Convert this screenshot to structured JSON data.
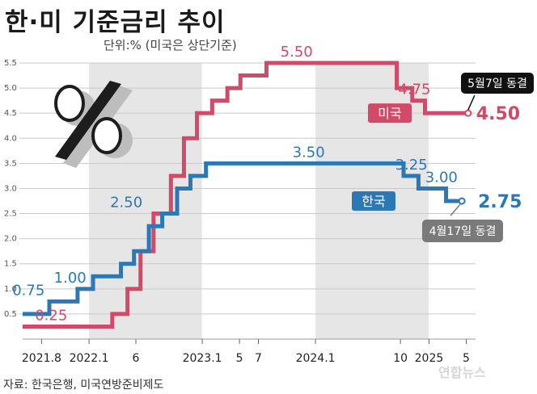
{
  "title": "한·미 기준금리 추이",
  "unit_note": "단위:% (미국은 상단기준)",
  "source": "자료: 한국은행, 미국연방준비제도",
  "watermark": "연합뉴스",
  "colors": {
    "us": "#d14a67",
    "korea": "#2b78b5",
    "grid": "#c9c9c9",
    "shade": "#e6e6e6",
    "callout": "#111111",
    "callout_gray": "#7a7a7a"
  },
  "icon": "percent-symbol-icon",
  "chart_data": {
    "type": "line",
    "step": true,
    "ylim": [
      0,
      5.5
    ],
    "yticks": [
      "0.5",
      "1.0",
      "1.5",
      "2.0",
      "2.5",
      "3.0",
      "3.5",
      "4.0",
      "4.5",
      "5.0",
      "5.5"
    ],
    "xlim": [
      "2021-06-01",
      "2025-05-31"
    ],
    "xticks": [
      {
        "label": "2021.8",
        "date": "2021-08-01"
      },
      {
        "label": "2022.1",
        "date": "2022-01-01"
      },
      {
        "label": "6",
        "date": "2022-06-01"
      },
      {
        "label": "2023.1",
        "date": "2023-01-01"
      },
      {
        "label": "5",
        "date": "2023-05-01"
      },
      {
        "label": "7",
        "date": "2023-07-01"
      },
      {
        "label": "2024.1",
        "date": "2024-01-01"
      },
      {
        "label": "10",
        "date": "2024-10-01"
      },
      {
        "label": "2025",
        "date": "2025-01-01"
      },
      {
        "label": "5",
        "date": "2025-05-01"
      }
    ],
    "shaded_years": [
      {
        "from": "2022-01-01",
        "to": "2022-12-31"
      },
      {
        "from": "2024-01-01",
        "to": "2024-12-31"
      }
    ],
    "grid": true,
    "series": [
      {
        "name": "미국",
        "color": "#d14a67",
        "steps": [
          {
            "date": "2021-06-01",
            "value": 0.25
          },
          {
            "date": "2022-03-17",
            "value": 0.5
          },
          {
            "date": "2022-05-05",
            "value": 1.0
          },
          {
            "date": "2022-06-16",
            "value": 1.75
          },
          {
            "date": "2022-07-28",
            "value": 2.5
          },
          {
            "date": "2022-09-22",
            "value": 3.25
          },
          {
            "date": "2022-11-03",
            "value": 4.0
          },
          {
            "date": "2022-12-15",
            "value": 4.5
          },
          {
            "date": "2023-02-02",
            "value": 4.75
          },
          {
            "date": "2023-03-23",
            "value": 5.0
          },
          {
            "date": "2023-05-04",
            "value": 5.25
          },
          {
            "date": "2023-07-27",
            "value": 5.5
          },
          {
            "date": "2024-09-19",
            "value": 5.0
          },
          {
            "date": "2024-11-08",
            "value": 4.75
          },
          {
            "date": "2024-12-19",
            "value": 4.5
          },
          {
            "date": "2025-05-07",
            "value": 4.5
          }
        ]
      },
      {
        "name": "한국",
        "color": "#2b78b5",
        "steps": [
          {
            "date": "2021-06-01",
            "value": 0.5
          },
          {
            "date": "2021-08-26",
            "value": 0.75
          },
          {
            "date": "2021-11-25",
            "value": 1.0
          },
          {
            "date": "2022-01-14",
            "value": 1.25
          },
          {
            "date": "2022-04-14",
            "value": 1.5
          },
          {
            "date": "2022-05-26",
            "value": 1.75
          },
          {
            "date": "2022-07-13",
            "value": 2.25
          },
          {
            "date": "2022-08-25",
            "value": 2.5
          },
          {
            "date": "2022-10-12",
            "value": 3.0
          },
          {
            "date": "2022-11-24",
            "value": 3.25
          },
          {
            "date": "2023-01-13",
            "value": 3.5
          },
          {
            "date": "2024-10-11",
            "value": 3.25
          },
          {
            "date": "2024-11-28",
            "value": 3.0
          },
          {
            "date": "2025-02-25",
            "value": 2.75
          },
          {
            "date": "2025-04-17",
            "value": 2.75
          }
        ]
      }
    ],
    "annotations": [
      {
        "series": "미국",
        "date": "2021-09-01",
        "value": 0.25,
        "text": "0.25"
      },
      {
        "series": "미국",
        "date": "2023-11-01",
        "value": 5.5,
        "text": "5.50"
      },
      {
        "series": "미국",
        "date": "2024-11-15",
        "value": 4.75,
        "text": "4.75"
      },
      {
        "series": "한국",
        "date": "2021-06-20",
        "value": 0.75,
        "text": "0.75"
      },
      {
        "series": "한국",
        "date": "2021-11-01",
        "value": 1.0,
        "text": "1.00"
      },
      {
        "series": "한국",
        "date": "2022-05-01",
        "value": 2.5,
        "text": "2.50"
      },
      {
        "series": "한국",
        "date": "2023-12-10",
        "value": 3.5,
        "text": "3.50"
      },
      {
        "series": "한국",
        "date": "2024-11-05",
        "value": 3.25,
        "text": "3.25"
      },
      {
        "series": "한국",
        "date": "2025-02-10",
        "value": 3.0,
        "text": "3.00"
      }
    ],
    "series_labels": {
      "us": "미국",
      "korea": "한국"
    },
    "final_values": {
      "us": "4.50",
      "korea": "2.75"
    },
    "callouts": {
      "us": "5월7일 동결",
      "korea": "4월17일 동결"
    }
  }
}
